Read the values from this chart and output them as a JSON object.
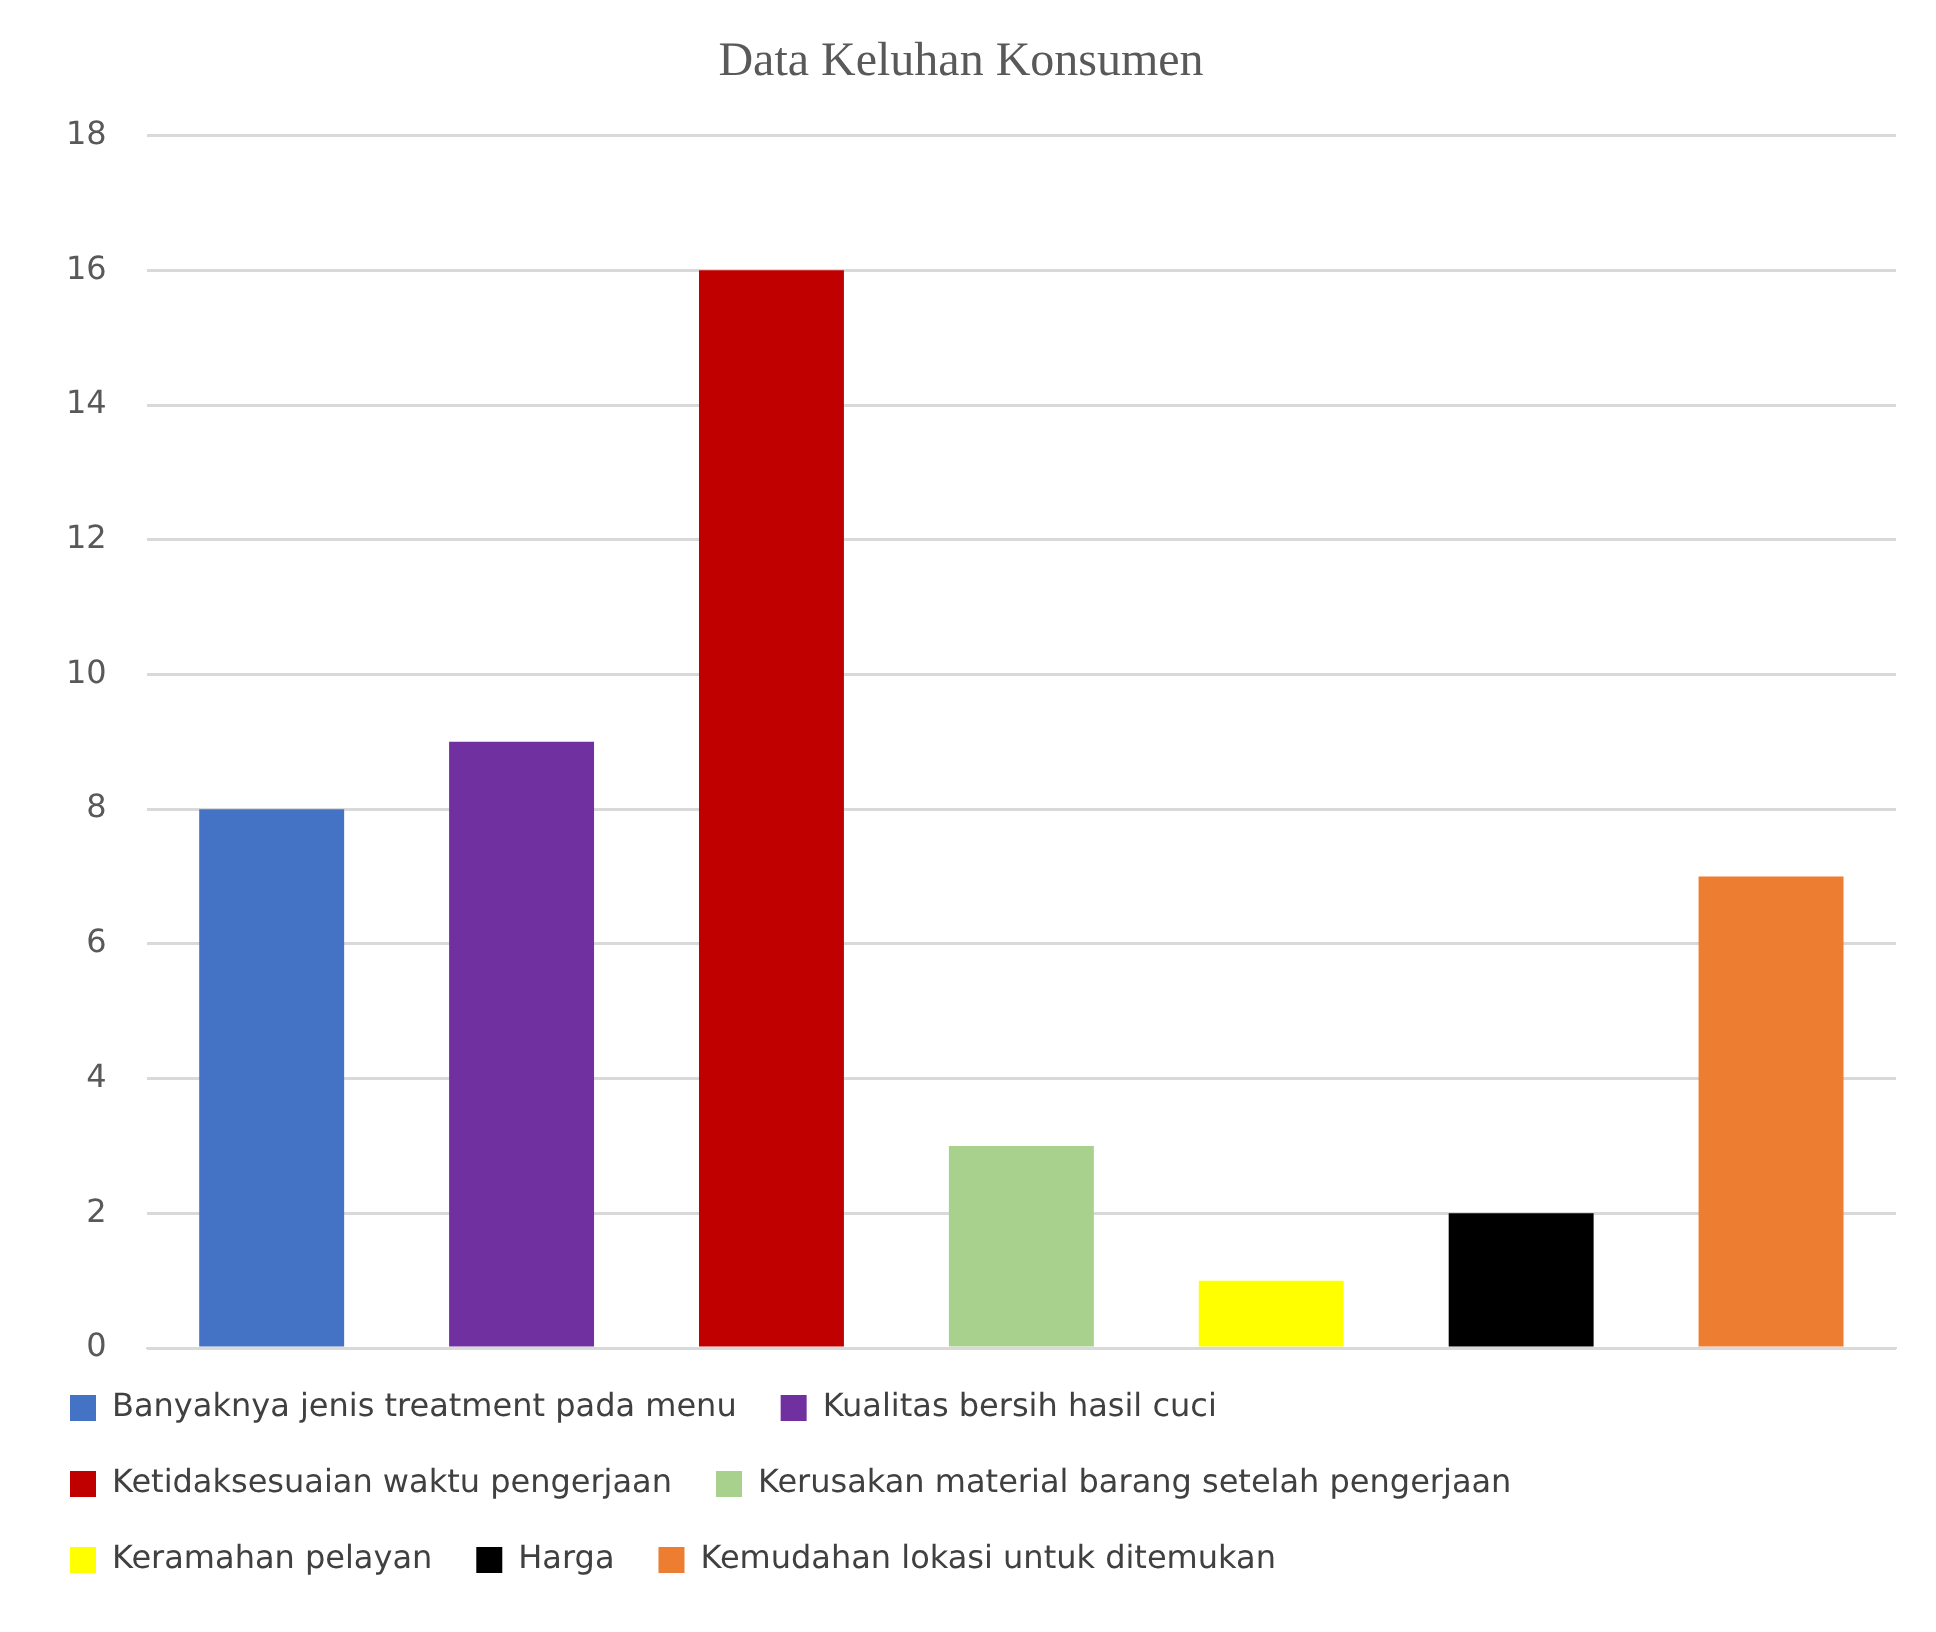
{
  "chart_data": {
    "type": "bar",
    "title": "Data Keluhan Konsumen",
    "categories": [
      null
    ],
    "series": [
      {
        "name": "Banyaknya jenis treatment pada menu",
        "color": "#4472c4",
        "values": [
          8
        ]
      },
      {
        "name": "Kualitas bersih hasil cuci",
        "color": "#7030a0",
        "values": [
          9
        ]
      },
      {
        "name": "Ketidaksesuaian waktu pengerjaan",
        "color": "#c00000",
        "values": [
          16
        ]
      },
      {
        "name": "Kerusakan material barang setelah pengerjaan",
        "color": "#a9d18e",
        "values": [
          3
        ]
      },
      {
        "name": "Keramahan pelayan",
        "color": "#ffff00",
        "values": [
          1
        ]
      },
      {
        "name": "Harga",
        "color": "#000000",
        "values": [
          2
        ]
      },
      {
        "name": "Kemudahan lokasi untuk ditemukan",
        "color": "#ed7d31",
        "values": [
          7
        ]
      }
    ],
    "ylim": [
      0,
      18
    ],
    "yticks": [
      0,
      2,
      4,
      6,
      8,
      10,
      12,
      14,
      16,
      18
    ],
    "grid": "y",
    "legend": "bottom"
  }
}
